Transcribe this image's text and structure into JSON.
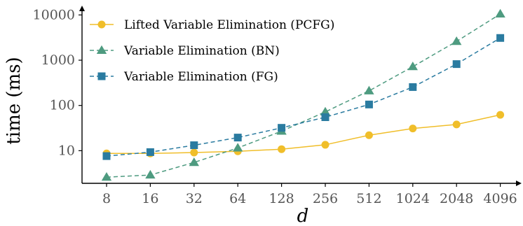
{
  "chart_data": {
    "type": "line",
    "title": "",
    "xlabel": "d",
    "ylabel": "time (ms)",
    "x_scale": "log2 (categorical ticks)",
    "y_scale": "log10",
    "categories": [
      "8",
      "16",
      "32",
      "64",
      "128",
      "256",
      "512",
      "1024",
      "2048",
      "4096"
    ],
    "yticks": [
      "10",
      "100",
      "1000",
      "10000"
    ],
    "ylim": [
      1.9,
      13000
    ],
    "grid": false,
    "legend_position": "top-left",
    "series": [
      {
        "name": "Lifted Variable Elimination (PCFG)",
        "color": "#F0BE2A",
        "marker": "circle",
        "line_style": "solid",
        "values": [
          8.7,
          8.7,
          9.1,
          9.7,
          10.8,
          13.5,
          22,
          31,
          38,
          62
        ]
      },
      {
        "name": "Variable Elimination (BN)",
        "color": "#4E9B80",
        "marker": "triangle",
        "line_style": "dashed",
        "values": [
          2.6,
          2.9,
          5.5,
          11.5,
          27,
          72,
          210,
          720,
          2600,
          10500
        ]
      },
      {
        "name": "Variable Elimination (FG)",
        "color": "#2A7BA0",
        "marker": "square",
        "line_style": "dashed",
        "values": [
          7.6,
          9.3,
          13.2,
          19.5,
          32,
          55,
          105,
          255,
          820,
          3100
        ]
      }
    ]
  }
}
